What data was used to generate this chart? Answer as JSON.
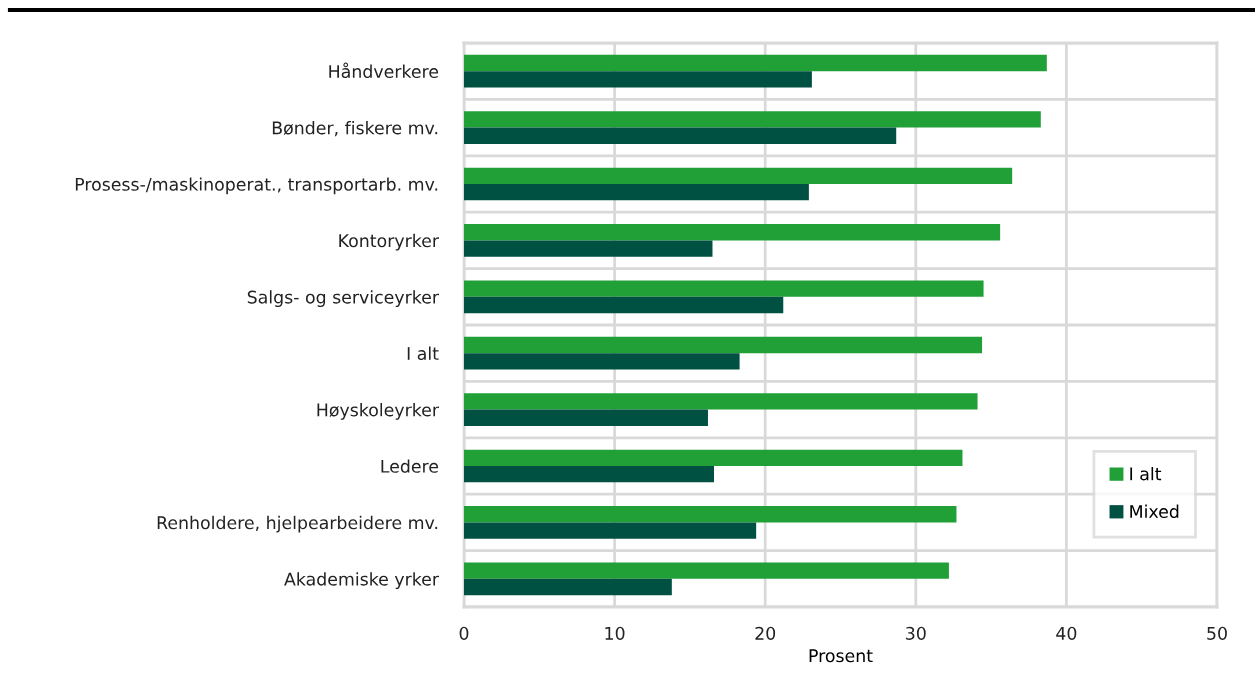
{
  "chart_data": {
    "type": "bar",
    "orientation": "horizontal",
    "categories": [
      "Håndverkere",
      "Bønder, fiskere mv.",
      "Prosess-/maskinoperat., transportarb. mv.",
      "Kontoryrker",
      "Salgs- og serviceyrker",
      "I alt",
      "Høyskoleyrker",
      "Ledere",
      "Renholdere, hjelpearbeidere mv.",
      "Akademiske yrker"
    ],
    "series": [
      {
        "name": "I alt",
        "color": "#21a038",
        "values": [
          38.7,
          38.3,
          36.4,
          35.6,
          34.5,
          34.4,
          34.1,
          33.1,
          32.7,
          32.2
        ]
      },
      {
        "name": "Mixed",
        "color": "#005142",
        "values": [
          23.1,
          28.7,
          22.9,
          16.5,
          21.2,
          18.3,
          16.2,
          16.6,
          19.4,
          13.8
        ]
      }
    ],
    "xlabel": "Prosent",
    "xlim": [
      0,
      50
    ],
    "xticks": [
      0,
      10,
      20,
      30,
      40,
      50
    ],
    "grid": true,
    "legend": "right"
  }
}
